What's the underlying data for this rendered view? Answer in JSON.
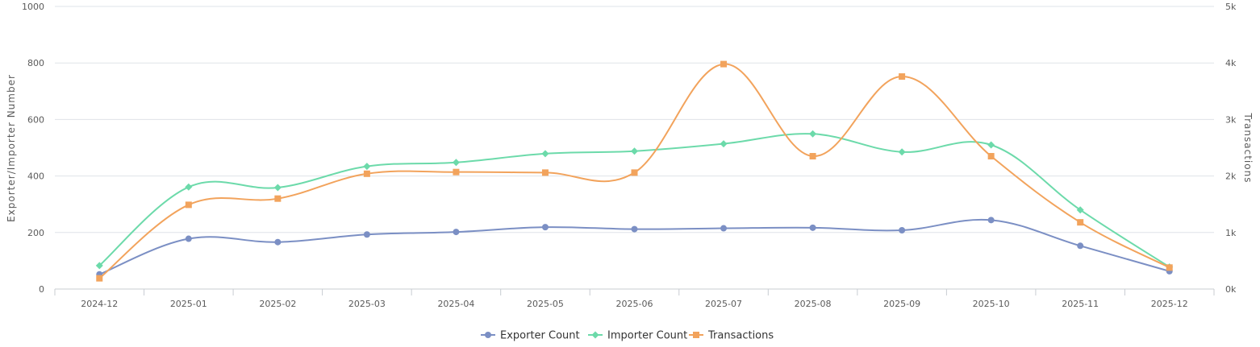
{
  "chart_data": {
    "type": "line",
    "title": "",
    "categories": [
      "2024-12",
      "2025-01",
      "2025-02",
      "2025-03",
      "2025-04",
      "2025-05",
      "2025-06",
      "2025-07",
      "2025-08",
      "2025-09",
      "2025-10",
      "2025-11",
      "2025-12"
    ],
    "y_left": {
      "label": "Exporter/Importer Number",
      "min": 0,
      "max": 1000,
      "ticks": [
        "0",
        "200",
        "400",
        "600",
        "800",
        "1000"
      ]
    },
    "y_right": {
      "label": "Transactions",
      "min": 0,
      "max": 5000,
      "ticks": [
        "0k",
        "1k",
        "2k",
        "3k",
        "4k",
        "5k"
      ]
    },
    "series": [
      {
        "name": "Exporter Count",
        "axis": "left",
        "color": "#7b8fc4",
        "marker": "circle",
        "values": [
          52,
          178,
          166,
          193,
          202,
          219,
          212,
          215,
          217,
          208,
          244,
          153,
          63
        ]
      },
      {
        "name": "Importer Count",
        "axis": "left",
        "color": "#6cdaaa",
        "marker": "diamond",
        "values": [
          83,
          361,
          359,
          434,
          448,
          479,
          488,
          514,
          549,
          485,
          510,
          280,
          78
        ]
      },
      {
        "name": "Transactions",
        "axis": "right",
        "color": "#f2a35c",
        "marker": "square",
        "values": [
          190,
          1490,
          1600,
          2040,
          2070,
          2060,
          2060,
          3980,
          2350,
          3760,
          2350,
          1180,
          380
        ]
      }
    ],
    "grid": true,
    "legend_position": "bottom-center"
  }
}
